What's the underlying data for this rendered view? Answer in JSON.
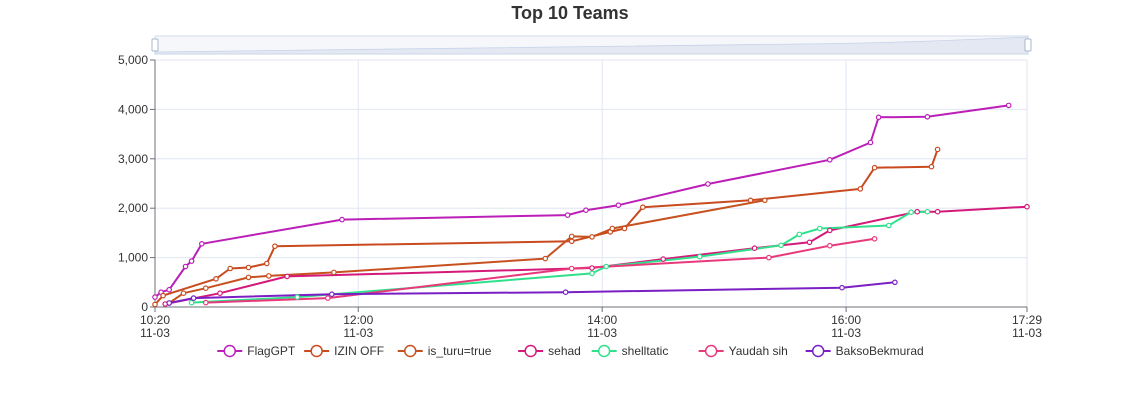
{
  "chart_data": {
    "type": "line",
    "title": "Top 10 Teams",
    "xlabel": "",
    "ylabel": "",
    "ylim": [
      0,
      5000
    ],
    "x_axis_type": "time",
    "x_range": [
      "2023-11-03T10:20",
      "2023-11-03T17:29"
    ],
    "x_ticks": [
      {
        "t": "2023-11-03T10:20",
        "time": "10:20",
        "date": "11-03"
      },
      {
        "t": "2023-11-03T12:00",
        "time": "12:00",
        "date": "11-03"
      },
      {
        "t": "2023-11-03T14:00",
        "time": "14:00",
        "date": "11-03"
      },
      {
        "t": "2023-11-03T16:00",
        "time": "16:00",
        "date": "11-03"
      },
      {
        "t": "2023-11-03T17:29",
        "time": "17:29",
        "date": "11-03"
      }
    ],
    "y_ticks": [
      {
        "value": 0,
        "label": "0"
      },
      {
        "value": 1000,
        "label": "1,000"
      },
      {
        "value": 2000,
        "label": "2,000"
      },
      {
        "value": 3000,
        "label": "3,000"
      },
      {
        "value": 4000,
        "label": "4,000"
      },
      {
        "value": 5000,
        "label": "5,000"
      }
    ],
    "grid": true,
    "legend_position": "bottom",
    "has_data_zoom_slider": true,
    "series": [
      {
        "name": "FlagGPT",
        "color": "#bb1fb8",
        "points": [
          [
            "2023-11-03T10:20",
            200
          ],
          [
            "2023-11-03T10:23",
            300
          ],
          [
            "2023-11-03T10:27",
            350
          ],
          [
            "2023-11-03T10:35",
            820
          ],
          [
            "2023-11-03T10:38",
            930
          ],
          [
            "2023-11-03T10:43",
            1280
          ],
          [
            "2023-11-03T11:52",
            1770
          ],
          [
            "2023-11-03T13:43",
            1860
          ],
          [
            "2023-11-03T13:52",
            1960
          ],
          [
            "2023-11-03T14:08",
            2060
          ],
          [
            "2023-11-03T14:52",
            2490
          ],
          [
            "2023-11-03T15:52",
            2980
          ],
          [
            "2023-11-03T16:12",
            3330
          ],
          [
            "2023-11-03T16:16",
            3840
          ],
          [
            "2023-11-03T16:40",
            3850
          ],
          [
            "2023-11-03T17:20",
            4080
          ]
        ]
      },
      {
        "name": "IZIN OFF",
        "color": "#c94a1f",
        "points": [
          [
            "2023-11-03T10:20",
            50
          ],
          [
            "2023-11-03T10:24",
            230
          ],
          [
            "2023-11-03T10:50",
            570
          ],
          [
            "2023-11-03T10:57",
            780
          ],
          [
            "2023-11-03T11:06",
            800
          ],
          [
            "2023-11-03T11:15",
            880
          ],
          [
            "2023-11-03T11:19",
            1230
          ],
          [
            "2023-11-03T13:45",
            1330
          ],
          [
            "2023-11-03T14:04",
            1520
          ],
          [
            "2023-11-03T14:11",
            1590
          ],
          [
            "2023-11-03T14:20",
            2020
          ],
          [
            "2023-11-03T15:13",
            2160
          ],
          [
            "2023-11-03T16:07",
            2390
          ],
          [
            "2023-11-03T16:14",
            2820
          ],
          [
            "2023-11-03T16:42",
            2840
          ],
          [
            "2023-11-03T16:45",
            3190
          ]
        ]
      },
      {
        "name": "is_turu=true",
        "color": "#c7501f",
        "points": [
          [
            "2023-11-03T10:27",
            80
          ],
          [
            "2023-11-03T10:34",
            280
          ],
          [
            "2023-11-03T10:45",
            380
          ],
          [
            "2023-11-03T11:06",
            600
          ],
          [
            "2023-11-03T11:16",
            630
          ],
          [
            "2023-11-03T11:48",
            700
          ],
          [
            "2023-11-03T13:32",
            980
          ],
          [
            "2023-11-03T13:45",
            1430
          ],
          [
            "2023-11-03T13:55",
            1420
          ],
          [
            "2023-11-03T14:05",
            1590
          ],
          [
            "2023-11-03T15:20",
            2160
          ]
        ]
      },
      {
        "name": "sehad",
        "color": "#d4197a",
        "points": [
          [
            "2023-11-03T10:25",
            60
          ],
          [
            "2023-11-03T10:52",
            280
          ],
          [
            "2023-11-03T11:25",
            620
          ],
          [
            "2023-11-03T13:55",
            790
          ],
          [
            "2023-11-03T14:30",
            970
          ],
          [
            "2023-11-03T15:15",
            1190
          ],
          [
            "2023-11-03T15:42",
            1310
          ],
          [
            "2023-11-03T15:52",
            1550
          ],
          [
            "2023-11-03T16:35",
            1930
          ],
          [
            "2023-11-03T16:45",
            1930
          ],
          [
            "2023-11-03T17:29",
            2030
          ]
        ]
      },
      {
        "name": "shelltatic",
        "color": "#30e08c",
        "points": [
          [
            "2023-11-03T10:38",
            90
          ],
          [
            "2023-11-03T11:30",
            200
          ],
          [
            "2023-11-03T13:55",
            680
          ],
          [
            "2023-11-03T14:02",
            820
          ],
          [
            "2023-11-03T14:48",
            1020
          ],
          [
            "2023-11-03T15:28",
            1250
          ],
          [
            "2023-11-03T15:37",
            1470
          ],
          [
            "2023-11-03T15:47",
            1590
          ],
          [
            "2023-11-03T16:21",
            1650
          ],
          [
            "2023-11-03T16:32",
            1920
          ],
          [
            "2023-11-03T16:40",
            1930
          ]
        ]
      },
      {
        "name": "Yaudah sih",
        "color": "#e8397a",
        "points": [
          [
            "2023-11-03T10:45",
            90
          ],
          [
            "2023-11-03T11:45",
            180
          ],
          [
            "2023-11-03T13:45",
            780
          ],
          [
            "2023-11-03T15:22",
            1000
          ],
          [
            "2023-11-03T15:52",
            1240
          ],
          [
            "2023-11-03T16:14",
            1380
          ]
        ]
      },
      {
        "name": "BaksoBekmurad",
        "color": "#7b1fc4",
        "points": [
          [
            "2023-11-03T10:27",
            80
          ],
          [
            "2023-11-03T10:39",
            180
          ],
          [
            "2023-11-03T11:47",
            260
          ],
          [
            "2023-11-03T13:42",
            300
          ],
          [
            "2023-11-03T15:58",
            390
          ],
          [
            "2023-11-03T16:24",
            500
          ]
        ]
      }
    ]
  }
}
